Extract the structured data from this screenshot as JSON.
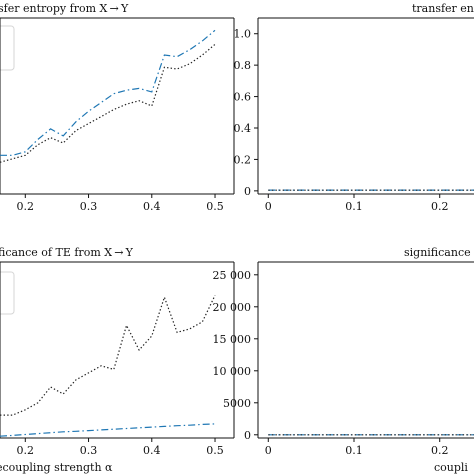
{
  "figure": {
    "panels": [
      {
        "title": "sfer entropy from X → Y"
      },
      {
        "title": "transfer entr"
      },
      {
        "title": "ficance of TE from X → Y",
        "xlabel": "ecoupling strength α"
      },
      {
        "title": "significance o",
        "xlabel": "coupli"
      }
    ]
  },
  "chart_data": [
    {
      "type": "line",
      "title": "sfer entropy from X → Y",
      "x": [
        0.16,
        0.18,
        0.2,
        0.22,
        0.24,
        0.26,
        0.28,
        0.3,
        0.32,
        0.34,
        0.36,
        0.38,
        0.4,
        0.42,
        0.44,
        0.46,
        0.48,
        0.5
      ],
      "xticks": [
        "0.2",
        "0.3",
        "0.4",
        "0.5"
      ],
      "xlim": [
        0.16,
        0.53
      ],
      "ylim": [
        0,
        1
      ],
      "legend": "top-left",
      "series": [
        {
          "style": "dash-dot",
          "color": "#1f77b4",
          "values": [
            0.22,
            0.22,
            0.24,
            0.31,
            0.37,
            0.33,
            0.41,
            0.47,
            0.52,
            0.57,
            0.59,
            0.6,
            0.58,
            0.79,
            0.78,
            0.82,
            0.87,
            0.93
          ]
        },
        {
          "style": "dotted",
          "color": "#222222",
          "values": [
            0.18,
            0.2,
            0.22,
            0.28,
            0.32,
            0.29,
            0.36,
            0.4,
            0.44,
            0.48,
            0.51,
            0.53,
            0.5,
            0.72,
            0.71,
            0.74,
            0.79,
            0.85
          ]
        }
      ]
    },
    {
      "type": "line",
      "title": "transfer entr",
      "x": [
        0,
        0.02,
        0.04,
        0.06,
        0.08,
        0.1,
        0.12,
        0.14,
        0.16,
        0.18,
        0.2,
        0.22,
        0.24
      ],
      "xticks": [
        "0",
        "0.1",
        "0.2"
      ],
      "yticks": [
        "0",
        "0.2",
        "0.4",
        "0.6",
        "0.8",
        "1.0"
      ],
      "xlim": [
        -0.012,
        0.24
      ],
      "ylim": [
        -0.02,
        1.1
      ],
      "series": [
        {
          "style": "dash-dot",
          "color": "#1f77b4",
          "values": [
            0.005,
            0.005,
            0.005,
            0.005,
            0.005,
            0.005,
            0.005,
            0.005,
            0.005,
            0.005,
            0.005,
            0.005,
            0.005
          ]
        },
        {
          "style": "dotted",
          "color": "#222222",
          "values": [
            0.004,
            0.004,
            0.004,
            0.004,
            0.004,
            0.004,
            0.004,
            0.004,
            0.004,
            0.004,
            0.004,
            0.004,
            0.004
          ]
        }
      ]
    },
    {
      "type": "line",
      "title": "ficance of TE from X → Y",
      "xlabel": "ecoupling strength α",
      "x": [
        0.16,
        0.18,
        0.2,
        0.22,
        0.24,
        0.26,
        0.28,
        0.3,
        0.32,
        0.34,
        0.36,
        0.38,
        0.4,
        0.42,
        0.44,
        0.46,
        0.48,
        0.5
      ],
      "xticks": [
        "0.2",
        "0.3",
        "0.4",
        "0.5"
      ],
      "xlim": [
        0.16,
        0.53
      ],
      "ylim": [
        0,
        1
      ],
      "legend": "top-left",
      "series": [
        {
          "style": "dotted",
          "color": "#222222",
          "values": [
            0.13,
            0.13,
            0.16,
            0.2,
            0.29,
            0.25,
            0.33,
            0.37,
            0.41,
            0.39,
            0.64,
            0.5,
            0.58,
            0.8,
            0.6,
            0.62,
            0.66,
            0.81
          ]
        },
        {
          "style": "dash-dot",
          "color": "#1f77b4",
          "values": [
            0.01,
            0.015,
            0.02,
            0.025,
            0.03,
            0.035,
            0.038,
            0.042,
            0.046,
            0.05,
            0.054,
            0.058,
            0.062,
            0.066,
            0.07,
            0.073,
            0.077,
            0.08
          ]
        }
      ]
    },
    {
      "type": "line",
      "title": "significance o",
      "xlabel": "coupli",
      "x": [
        0,
        0.02,
        0.04,
        0.06,
        0.08,
        0.1,
        0.12,
        0.14,
        0.16,
        0.18,
        0.2,
        0.22,
        0.24
      ],
      "xticks": [
        "0",
        "0.1",
        "0.2"
      ],
      "yticks": [
        "0",
        "5000",
        "10 000",
        "15 000",
        "20 000",
        "25 000"
      ],
      "xlim": [
        -0.012,
        0.24
      ],
      "ylim": [
        -500,
        27000
      ],
      "series": [
        {
          "style": "dash-dot",
          "color": "#1f77b4",
          "values": [
            0,
            0,
            0,
            0,
            0,
            0,
            0,
            0,
            0,
            0,
            0,
            0,
            0
          ]
        },
        {
          "style": "dotted",
          "color": "#222222",
          "values": [
            0,
            0,
            0,
            0,
            0,
            0,
            0,
            0,
            0,
            0,
            0,
            0,
            0
          ]
        }
      ]
    }
  ]
}
